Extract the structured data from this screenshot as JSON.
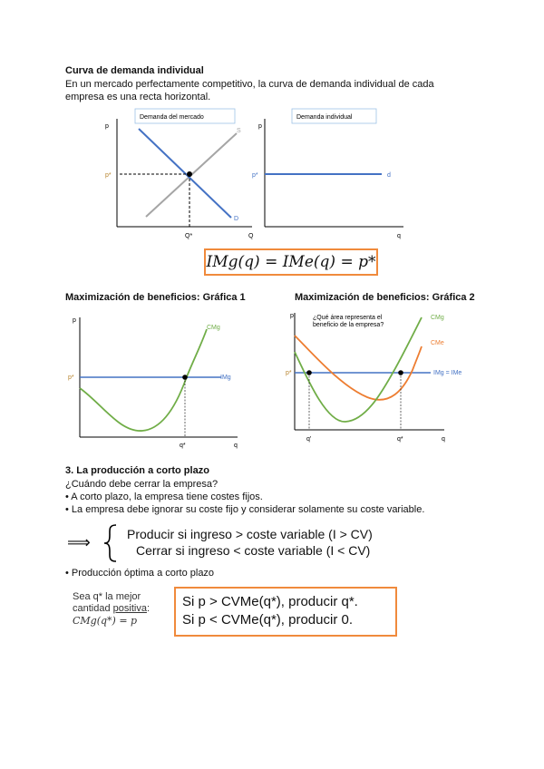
{
  "section1": {
    "title": "Curva de demanda individual",
    "text_line1": "En un mercado perfectamente competitivo, la curva de demanda individual de cada",
    "text_line2": "empresa es una recta horizontal."
  },
  "graph_market": {
    "label": "Demanda del mercado",
    "y_axis": "p",
    "x_axis": "Q",
    "p_star": "p*",
    "q_star": "Q*",
    "supply": "S",
    "demand": "D"
  },
  "graph_individual": {
    "label": "Demanda individual",
    "y_axis": "p",
    "x_axis": "q",
    "p_star": "p*",
    "demand": "d"
  },
  "formula1": "IMg(q) = IMe(q) = p*",
  "section2": {
    "heading1": "Maximización de beneficios: Gráfica 1",
    "heading2": "Maximización de beneficios: Gráfica 2"
  },
  "graph1": {
    "y_axis": "p",
    "x_axis": "q",
    "p_star": "p*",
    "q_star": "q*",
    "cmg": "CMg",
    "img": "IMg"
  },
  "graph2": {
    "y_axis": "p",
    "x_axis": "q",
    "p_star": "p*",
    "q_prime": "q'",
    "q_star": "q*",
    "cmg": "CMg",
    "cme": "CMe",
    "line": "IMg = IMe",
    "question1": "¿Qué área representa el",
    "question2": "beneficio de la empresa?"
  },
  "section3": {
    "title": "3. La producción a corto plazo",
    "q": "¿Cuándo debe cerrar la empresa?",
    "bullet1": "• A corto plazo, la empresa tiene costes fijos.",
    "bullet2": "• La empresa debe ignorar su coste fijo y considerar solamente su coste variable.",
    "rule1": "Producir si ingreso > coste variable (I > CV)",
    "rule2": "Cerrar si ingreso < coste variable (I < CV)",
    "arrow": "⟹",
    "bullet3": "• Producción óptima a corto plazo",
    "note1": "Sea q* la mejor",
    "note2_a": "cantidad ",
    "note2_b": "positiva",
    "note2_c": ":",
    "note3": "CMg(q*) = p",
    "box1": "Si p > CVMe(q*), producir q*.",
    "box2": "Si p < CVMe(q*), producir 0."
  },
  "colors": {
    "blue": "#4472c4",
    "green": "#70ad47",
    "orange": "#ed7d31",
    "gray": "#a5a5a5"
  }
}
